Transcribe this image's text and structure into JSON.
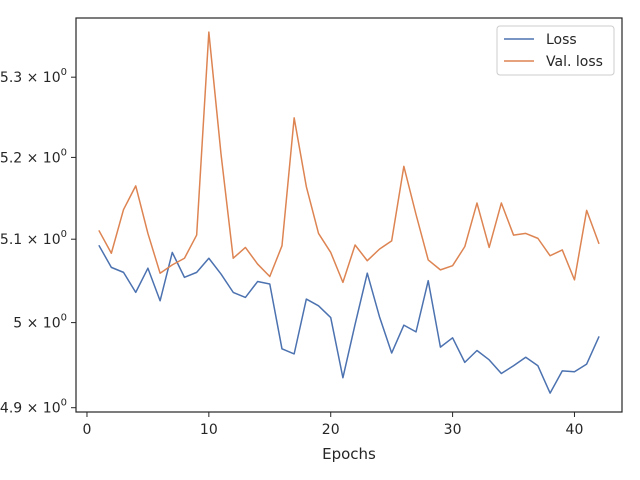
{
  "chart_data": {
    "type": "line",
    "title": "",
    "xlabel": "Epochs",
    "ylabel": "",
    "yscale": "log",
    "xlim": [
      -0.9,
      43.9
    ],
    "ylim": [
      4.895,
      5.375
    ],
    "x_ticks": [
      0,
      10,
      20,
      30,
      40
    ],
    "x_tick_labels": [
      "0",
      "10",
      "20",
      "30",
      "40"
    ],
    "y_ticks": [
      4.9,
      5.0,
      5.1,
      5.2,
      5.3
    ],
    "y_tick_labels": [
      {
        "mantissa": "4.9",
        "times": "×",
        "base": "10",
        "exp": "0"
      },
      {
        "mantissa": "5",
        "times": "×",
        "base": "10",
        "exp": "0"
      },
      {
        "mantissa": "5.1",
        "times": "×",
        "base": "10",
        "exp": "0"
      },
      {
        "mantissa": "5.2",
        "times": "×",
        "base": "10",
        "exp": "0"
      },
      {
        "mantissa": "5.3",
        "times": "×",
        "base": "10",
        "exp": "0"
      }
    ],
    "grid": false,
    "legend_position": "top-right",
    "x": [
      1,
      2,
      3,
      4,
      5,
      6,
      7,
      8,
      9,
      10,
      11,
      12,
      13,
      14,
      15,
      16,
      17,
      18,
      19,
      20,
      21,
      22,
      23,
      24,
      25,
      26,
      27,
      28,
      29,
      30,
      31,
      32,
      33,
      34,
      35,
      36,
      37,
      38,
      39,
      40,
      41,
      42
    ],
    "series": [
      {
        "name": "Loss",
        "color": "#4c72b0",
        "values": [
          5.092,
          5.066,
          5.06,
          5.036,
          5.065,
          5.026,
          5.084,
          5.054,
          5.06,
          5.077,
          5.058,
          5.036,
          5.03,
          5.049,
          5.046,
          4.969,
          4.963,
          5.028,
          5.02,
          5.006,
          4.935,
          4.998,
          5.059,
          5.007,
          4.964,
          4.997,
          4.989,
          5.05,
          4.971,
          4.982,
          4.953,
          4.967,
          4.956,
          4.94,
          4.949,
          4.959,
          4.949,
          4.917,
          4.943,
          4.942,
          4.951,
          4.983
        ]
      },
      {
        "name": "Val. loss",
        "color": "#dd8452",
        "values": [
          5.11,
          5.083,
          5.136,
          5.165,
          5.107,
          5.059,
          5.069,
          5.077,
          5.105,
          5.357,
          5.204,
          5.077,
          5.09,
          5.07,
          5.055,
          5.092,
          5.249,
          5.164,
          5.107,
          5.084,
          5.048,
          5.093,
          5.074,
          5.088,
          5.098,
          5.189,
          5.13,
          5.075,
          5.063,
          5.068,
          5.091,
          5.144,
          5.09,
          5.144,
          5.105,
          5.107,
          5.101,
          5.08,
          5.087,
          5.051,
          5.135,
          5.095
        ]
      }
    ]
  }
}
